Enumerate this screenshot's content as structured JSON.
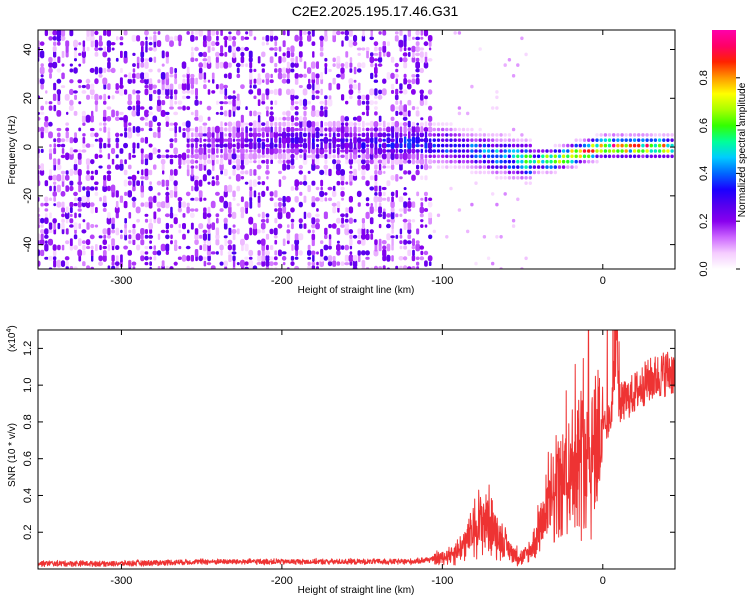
{
  "title": "C2E2.2025.195.17.46.G31",
  "chart_data": [
    {
      "type": "heatmap",
      "xlabel": "Height of straight line (km)",
      "ylabel": "Frequency (Hz)",
      "xlim": [
        -352,
        45
      ],
      "ylim": [
        -50,
        48
      ],
      "xticks": [
        -300,
        -200,
        -100,
        0
      ],
      "yticks": [
        -40,
        -20,
        0,
        20,
        40
      ],
      "colorbar": {
        "label": "Normalized spectral amplitude",
        "range": [
          0,
          1
        ],
        "ticks": [
          0.0,
          0.2,
          0.4,
          0.6,
          0.8
        ],
        "colormap": [
          "#ffffff",
          "#f5ccff",
          "#cc66ff",
          "#8800ee",
          "#5500ee",
          "#1a00ff",
          "#0066ff",
          "#00ccff",
          "#00ff99",
          "#33ff00",
          "#aaff00",
          "#ffff00",
          "#ff9900",
          "#ff2200",
          "#ff0066",
          "#ff00aa"
        ]
      },
      "features": [
        {
          "name": "noise-field",
          "x_range": [
            -352,
            -105
          ],
          "freq_range": [
            -50,
            48
          ],
          "amplitude": 0.15
        },
        {
          "name": "signal-ridge",
          "x": [
            -260,
            -200,
            -150,
            -100,
            -70,
            -45,
            -30,
            0,
            45
          ],
          "freq": [
            0,
            3,
            2,
            1,
            -3,
            -6,
            -5,
            0,
            0
          ],
          "amplitude": [
            0.2,
            0.3,
            0.3,
            0.4,
            0.45,
            0.6,
            0.8,
            0.9,
            0.8
          ]
        }
      ],
      "grid": false
    },
    {
      "type": "line",
      "xlabel": "Height of straight line (km)",
      "ylabel": "SNR (10 * v/v)",
      "y_scale_label": "(x10",
      "y_scale_exponent": "4",
      "xlim": [
        -352,
        45
      ],
      "ylim": [
        0,
        1.3
      ],
      "xticks": [
        -300,
        -200,
        -100,
        0
      ],
      "yticks": [
        0.2,
        0.4,
        0.6,
        0.8,
        1.0,
        1.2
      ],
      "color": "#ee3333",
      "series": [
        {
          "x": [
            -352,
            -300,
            -250,
            -200,
            -160,
            -120,
            -100,
            -90,
            -85,
            -80,
            -75,
            -70,
            -65,
            -60,
            -55,
            -50,
            -45,
            -40,
            -35,
            -30,
            -25,
            -20,
            -15,
            -10,
            -5,
            0,
            5,
            9,
            10,
            15,
            20,
            25,
            30,
            35,
            40,
            45
          ],
          "y": [
            0.03,
            0.03,
            0.04,
            0.04,
            0.04,
            0.04,
            0.06,
            0.1,
            0.15,
            0.22,
            0.28,
            0.25,
            0.18,
            0.12,
            0.08,
            0.06,
            0.1,
            0.2,
            0.3,
            0.4,
            0.48,
            0.55,
            0.6,
            0.65,
            0.7,
            0.75,
            0.82,
            1.3,
            0.9,
            0.92,
            0.96,
            1.0,
            1.03,
            1.05,
            1.07,
            1.07
          ]
        }
      ],
      "grid": false
    }
  ]
}
